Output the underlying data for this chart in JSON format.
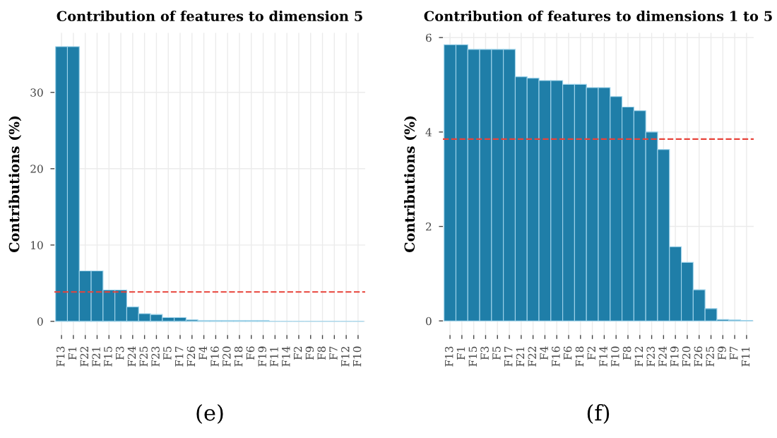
{
  "chart_data": [
    {
      "type": "bar",
      "title": "Contribution of features to dimension 5",
      "ylabel": "Contributions (%)",
      "annotations": [
        "(e)"
      ],
      "categories": [
        "F13",
        "F1",
        "F22",
        "F21",
        "F15",
        "F3",
        "F24",
        "F25",
        "F23",
        "F5",
        "F17",
        "F26",
        "F4",
        "F16",
        "F20",
        "F18",
        "F6",
        "F19",
        "F11",
        "F14",
        "F2",
        "F9",
        "F8",
        "F7",
        "F12",
        "F10"
      ],
      "values": [
        36,
        36,
        6.6,
        6.6,
        4.1,
        4.1,
        1.9,
        1.0,
        0.9,
        0.5,
        0.5,
        0.2,
        0.1,
        0.1,
        0.1,
        0.1,
        0.1,
        0.1,
        0,
        0,
        0,
        0,
        0,
        0,
        0,
        0
      ],
      "color": "#1f7ea8",
      "ylim": [
        -1.8,
        37.8
      ],
      "yticks": [
        0,
        10,
        20,
        30
      ],
      "grid": true,
      "ref_lines": [
        {
          "axis": "y",
          "value": 3.85,
          "color": "#e8433a",
          "line_style": "dashed"
        }
      ]
    },
    {
      "type": "bar",
      "title": "Contribution of features to dimensions 1 to 5",
      "ylabel": "Contributions (%)",
      "annotations": [
        "(f)"
      ],
      "categories": [
        "F13",
        "F1",
        "F15",
        "F3",
        "F5",
        "F17",
        "F21",
        "F22",
        "F4",
        "F16",
        "F6",
        "F18",
        "F2",
        "F14",
        "F10",
        "F8",
        "F12",
        "F23",
        "F24",
        "F19",
        "F20",
        "F26",
        "F25",
        "F9",
        "F7",
        "F11"
      ],
      "values": [
        5.85,
        5.85,
        5.75,
        5.75,
        5.75,
        5.75,
        5.17,
        5.14,
        5.09,
        5.09,
        5.01,
        5.01,
        4.94,
        4.94,
        4.75,
        4.53,
        4.45,
        4.0,
        3.63,
        1.57,
        1.24,
        0.66,
        0.26,
        0.03,
        0.02,
        0.01
      ],
      "color": "#1f7ea8",
      "ylim": [
        -0.3,
        6.1
      ],
      "yticks": [
        0,
        2,
        4,
        6
      ],
      "grid": true,
      "ref_lines": [
        {
          "axis": "y",
          "value": 3.85,
          "color": "#e8433a",
          "line_style": "dashed"
        }
      ]
    }
  ]
}
